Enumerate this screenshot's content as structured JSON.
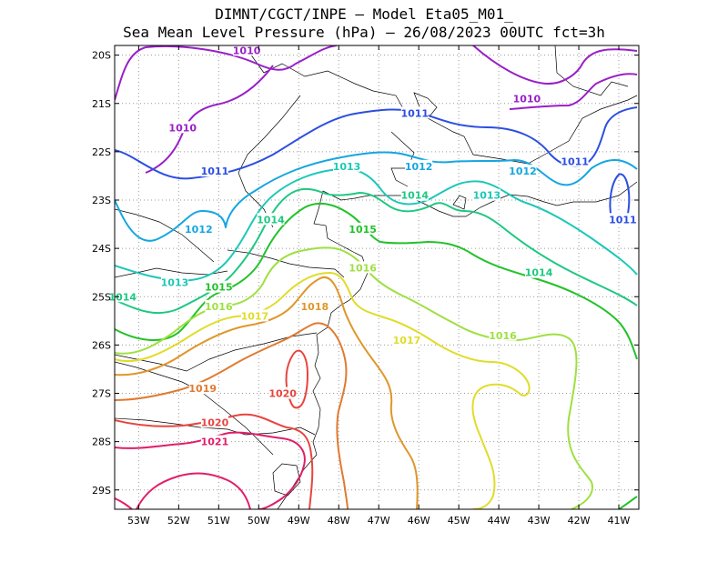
{
  "title_line1": "DIMNT/CGCT/INPE –  Model Eta05_M01_",
  "title_line2": "Sea Mean Level Pressure (hPa) – 26/08/2023 00UTC fct=3h",
  "map": {
    "lon_range": [
      -53.6,
      -40.5
    ],
    "lat_range": [
      -29.4,
      -19.8
    ],
    "lon_ticks": [
      {
        "v": -53,
        "t": "53W"
      },
      {
        "v": -52,
        "t": "52W"
      },
      {
        "v": -51,
        "t": "51W"
      },
      {
        "v": -50,
        "t": "50W"
      },
      {
        "v": -49,
        "t": "49W"
      },
      {
        "v": -48,
        "t": "48W"
      },
      {
        "v": -47,
        "t": "47W"
      },
      {
        "v": -46,
        "t": "46W"
      },
      {
        "v": -45,
        "t": "45W"
      },
      {
        "v": -44,
        "t": "44W"
      },
      {
        "v": -43,
        "t": "43W"
      },
      {
        "v": -42,
        "t": "42W"
      },
      {
        "v": -41,
        "t": "41W"
      }
    ],
    "lat_ticks": [
      {
        "v": -20,
        "t": "20S"
      },
      {
        "v": -21,
        "t": "21S"
      },
      {
        "v": -22,
        "t": "22S"
      },
      {
        "v": -23,
        "t": "23S"
      },
      {
        "v": -24,
        "t": "24S"
      },
      {
        "v": -25,
        "t": "25S"
      },
      {
        "v": -26,
        "t": "26S"
      },
      {
        "v": -27,
        "t": "27S"
      },
      {
        "v": -28,
        "t": "28S"
      },
      {
        "v": -29,
        "t": "29S"
      }
    ],
    "grid": "dotted"
  },
  "contours": [
    {
      "level": "1010",
      "color": "#9a1fc8",
      "labels": [
        [
          -50.3,
          -19.9
        ],
        [
          -51.9,
          -21.5
        ],
        [
          -43.3,
          -20.9
        ]
      ]
    },
    {
      "level": "1011",
      "color": "#2b4ee0",
      "labels": [
        [
          -51.1,
          -22.4
        ],
        [
          -46.1,
          -21.2
        ],
        [
          -42.1,
          -22.2
        ],
        [
          -40.9,
          -23.4
        ]
      ]
    },
    {
      "level": "1012",
      "color": "#15a6e0",
      "labels": [
        [
          -51.5,
          -23.6
        ],
        [
          -46.0,
          -22.3
        ],
        [
          -43.4,
          -22.4
        ]
      ]
    },
    {
      "level": "1013",
      "color": "#1cc8b8",
      "labels": [
        [
          -47.8,
          -22.3
        ],
        [
          -52.1,
          -24.7
        ],
        [
          -44.3,
          -22.9
        ]
      ]
    },
    {
      "level": "1014",
      "color": "#1ec882",
      "labels": [
        [
          -53.4,
          -25.0
        ],
        [
          -49.7,
          -23.4
        ],
        [
          -46.1,
          -22.9
        ],
        [
          -43.0,
          -24.5
        ]
      ]
    },
    {
      "level": "1015",
      "color": "#22c22a",
      "labels": [
        [
          -47.4,
          -23.6
        ],
        [
          -51.0,
          -24.8
        ]
      ]
    },
    {
      "level": "1016",
      "color": "#9ee040",
      "labels": [
        [
          -51.0,
          -25.2
        ],
        [
          -47.4,
          -24.4
        ],
        [
          -43.9,
          -25.8
        ]
      ]
    },
    {
      "level": "1017",
      "color": "#e0dc2a",
      "labels": [
        [
          -50.1,
          -25.4
        ],
        [
          -46.3,
          -25.9
        ]
      ]
    },
    {
      "level": "1018",
      "color": "#e0962a",
      "labels": [
        [
          -48.6,
          -25.2
        ]
      ]
    },
    {
      "level": "1019",
      "color": "#e07a30",
      "labels": [
        [
          -51.4,
          -26.9
        ]
      ]
    },
    {
      "level": "1020",
      "color": "#e8443e",
      "labels": [
        [
          -49.4,
          -27.0
        ],
        [
          -51.1,
          -27.6
        ]
      ]
    },
    {
      "level": "1021",
      "color": "#e01e6a",
      "labels": [
        [
          -51.1,
          -28.0
        ]
      ]
    }
  ]
}
